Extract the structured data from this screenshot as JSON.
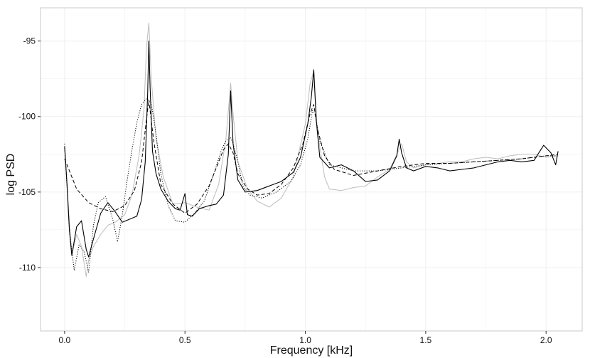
{
  "chart_data": {
    "type": "line",
    "title": "",
    "xlabel": "Frequency [kHz]",
    "ylabel": "log PSD",
    "xlim": [
      -0.1,
      2.15
    ],
    "ylim": [
      -114.2,
      -92.8
    ],
    "xticks": [
      0.0,
      0.5,
      1.0,
      1.5,
      2.0
    ],
    "xtick_labels": [
      "0.0",
      "0.5",
      "1.0",
      "1.5",
      "2.0"
    ],
    "yticks": [
      -95,
      -100,
      -105,
      -110
    ],
    "ytick_labels": [
      "-95",
      "-100",
      "-105",
      "-110"
    ],
    "grid": true,
    "legend": "none",
    "colors": {
      "raw": "#bdbdbd",
      "smooth": "#000000",
      "panel_border": "#c8c8c8",
      "grid": "#f0f0f0"
    },
    "series": [
      {
        "style": "gray-raw",
        "x": [
          0.0,
          0.02,
          0.03,
          0.05,
          0.07,
          0.09,
          0.1,
          0.12,
          0.15,
          0.18,
          0.21,
          0.25,
          0.28,
          0.31,
          0.33,
          0.34,
          0.35,
          0.36,
          0.38,
          0.41,
          0.45,
          0.5,
          0.55,
          0.6,
          0.64,
          0.67,
          0.69,
          0.7,
          0.72,
          0.76,
          0.8,
          0.85,
          0.9,
          0.95,
          1.0,
          1.02,
          1.035,
          1.05,
          1.08,
          1.1,
          1.15,
          1.2,
          1.25,
          1.3,
          1.35,
          1.38,
          1.4,
          1.42,
          1.45,
          1.5,
          1.55,
          1.6,
          1.65,
          1.7,
          1.75,
          1.8,
          1.85,
          1.9,
          1.95,
          2.0,
          2.05
        ],
        "y": [
          -102.0,
          -107.0,
          -109.2,
          -107.8,
          -108.6,
          -110.6,
          -109.5,
          -108.6,
          -107.8,
          -107.2,
          -107.0,
          -106.5,
          -105.2,
          -102.5,
          -99.5,
          -95.5,
          -93.8,
          -97.5,
          -101.5,
          -104.0,
          -105.8,
          -105.7,
          -106.0,
          -106.2,
          -104.5,
          -101.5,
          -97.8,
          -99.8,
          -103.0,
          -104.8,
          -105.6,
          -106.0,
          -105.4,
          -104.0,
          -100.5,
          -97.8,
          -97.0,
          -101.0,
          -104.0,
          -104.8,
          -104.9,
          -104.7,
          -104.6,
          -104.0,
          -103.5,
          -102.5,
          -101.8,
          -103.0,
          -103.4,
          -103.2,
          -103.1,
          -103.0,
          -103.0,
          -102.8,
          -102.7,
          -102.8,
          -102.6,
          -102.5,
          -102.5,
          -102.7,
          -102.6
        ]
      },
      {
        "style": "solid",
        "x": [
          0.0,
          0.01,
          0.02,
          0.03,
          0.05,
          0.07,
          0.09,
          0.1,
          0.12,
          0.15,
          0.18,
          0.21,
          0.24,
          0.27,
          0.3,
          0.32,
          0.335,
          0.345,
          0.35,
          0.355,
          0.365,
          0.38,
          0.4,
          0.43,
          0.46,
          0.48,
          0.5,
          0.51,
          0.53,
          0.56,
          0.6,
          0.63,
          0.66,
          0.68,
          0.69,
          0.7,
          0.72,
          0.75,
          0.8,
          0.85,
          0.9,
          0.95,
          0.98,
          1.01,
          1.025,
          1.035,
          1.045,
          1.06,
          1.1,
          1.15,
          1.2,
          1.25,
          1.3,
          1.35,
          1.38,
          1.39,
          1.4,
          1.42,
          1.45,
          1.5,
          1.55,
          1.6,
          1.65,
          1.7,
          1.75,
          1.8,
          1.85,
          1.9,
          1.95,
          1.99,
          2.02,
          2.04,
          2.05
        ],
        "y": [
          -102.0,
          -104.5,
          -107.5,
          -109.2,
          -107.3,
          -106.9,
          -108.8,
          -109.3,
          -108.1,
          -106.4,
          -105.7,
          -106.3,
          -107.0,
          -106.8,
          -106.6,
          -105.5,
          -103.0,
          -98.5,
          -95.0,
          -98.0,
          -102.3,
          -103.8,
          -104.8,
          -105.6,
          -106.1,
          -106.2,
          -105.1,
          -106.5,
          -106.6,
          -106.1,
          -105.9,
          -105.8,
          -105.2,
          -102.5,
          -98.3,
          -101.8,
          -104.2,
          -105.0,
          -104.9,
          -104.6,
          -104.3,
          -103.7,
          -102.7,
          -100.5,
          -98.7,
          -96.9,
          -100.2,
          -102.7,
          -103.4,
          -103.2,
          -103.6,
          -104.3,
          -104.2,
          -103.6,
          -102.6,
          -101.5,
          -102.4,
          -103.4,
          -103.6,
          -103.3,
          -103.4,
          -103.6,
          -103.5,
          -103.4,
          -103.2,
          -103.0,
          -102.9,
          -103.0,
          -102.9,
          -101.9,
          -102.4,
          -103.2,
          -102.3
        ]
      },
      {
        "style": "dashed",
        "x": [
          0.0,
          0.05,
          0.1,
          0.15,
          0.2,
          0.25,
          0.29,
          0.32,
          0.34,
          0.35,
          0.37,
          0.4,
          0.45,
          0.5,
          0.55,
          0.6,
          0.63,
          0.66,
          0.68,
          0.7,
          0.72,
          0.76,
          0.8,
          0.85,
          0.9,
          0.95,
          0.99,
          1.02,
          1.035,
          1.05,
          1.08,
          1.12,
          1.2,
          1.3,
          1.4,
          1.5,
          1.6,
          1.7,
          1.8,
          1.9,
          2.0,
          2.05
        ],
        "y": [
          -102.8,
          -104.8,
          -105.7,
          -106.1,
          -106.3,
          -105.9,
          -104.9,
          -103.0,
          -100.2,
          -98.9,
          -101.6,
          -104.5,
          -105.8,
          -106.4,
          -105.8,
          -104.6,
          -103.4,
          -102.2,
          -101.8,
          -102.4,
          -103.8,
          -104.8,
          -105.2,
          -105.1,
          -104.5,
          -103.4,
          -101.8,
          -99.8,
          -99.2,
          -100.8,
          -102.6,
          -103.5,
          -103.9,
          -103.6,
          -103.3,
          -103.1,
          -103.1,
          -103.0,
          -102.9,
          -102.8,
          -102.6,
          -102.5
        ]
      },
      {
        "style": "dotted",
        "x": [
          0.0,
          0.02,
          0.04,
          0.06,
          0.08,
          0.1,
          0.12,
          0.14,
          0.17,
          0.2,
          0.22,
          0.24,
          0.26,
          0.28,
          0.3,
          0.32,
          0.34,
          0.36,
          0.38,
          0.4,
          0.43,
          0.46,
          0.5,
          0.54,
          0.58,
          0.62,
          0.65,
          0.67,
          0.69,
          0.7,
          0.72,
          0.74,
          0.77,
          0.82,
          0.88,
          0.94,
          0.98,
          1.01,
          1.03,
          1.04,
          1.06,
          1.1,
          1.2,
          1.3,
          1.4,
          1.5,
          1.6,
          1.7,
          1.8,
          1.9,
          2.0,
          2.05
        ],
        "y": [
          -101.8,
          -107.5,
          -110.2,
          -108.5,
          -108.9,
          -110.3,
          -107.2,
          -105.7,
          -105.3,
          -106.8,
          -108.3,
          -106.5,
          -104.2,
          -102.2,
          -100.4,
          -99.2,
          -98.8,
          -99.1,
          -101.2,
          -103.8,
          -105.9,
          -106.9,
          -107.0,
          -106.4,
          -105.6,
          -103.8,
          -102.3,
          -101.6,
          -101.4,
          -101.8,
          -103.0,
          -104.6,
          -105.2,
          -105.4,
          -105.0,
          -104.3,
          -103.2,
          -101.5,
          -99.6,
          -99.8,
          -101.6,
          -103.2,
          -103.6,
          -103.6,
          -103.4,
          -103.2,
          -103.1,
          -103.0,
          -102.9,
          -102.8,
          -102.6,
          -102.6
        ]
      }
    ]
  }
}
